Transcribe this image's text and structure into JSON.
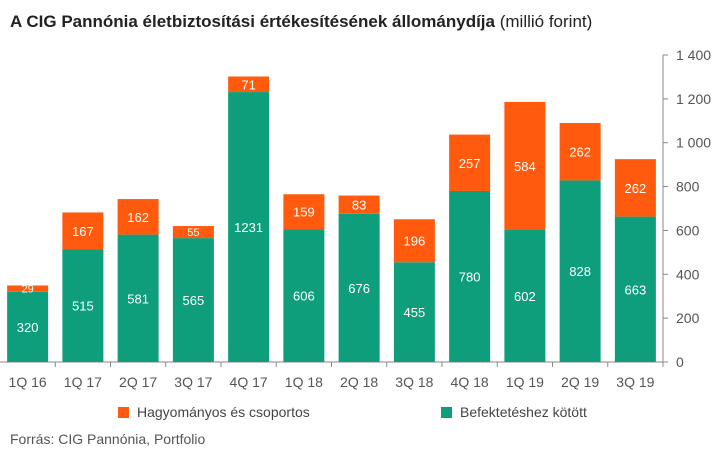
{
  "title": "A CIG Pannónia életbiztosítási értékesítésének állománydíja",
  "subtitle": "(millió forint)",
  "source": "Forrás:  CIG Pannónia, Portfolio",
  "colors": {
    "green": "#0e9e7c",
    "orange": "#ff5a0d",
    "grid": "#d9d9d9",
    "axis": "#555555"
  },
  "chart_data": {
    "type": "bar",
    "stacked": true,
    "categories": [
      "1Q 16",
      "1Q 17",
      "2Q 17",
      "3Q 17",
      "4Q 17",
      "1Q 18",
      "2Q 18",
      "3Q 18",
      "4Q 18",
      "1Q 19",
      "2Q 19",
      "3Q 19"
    ],
    "series": [
      {
        "name": "Befektetéshez kötött",
        "color": "#0e9e7c",
        "values": [
          320,
          515,
          581,
          565,
          1231,
          606,
          676,
          455,
          780,
          602,
          828,
          663
        ]
      },
      {
        "name": "Hagyományos és csoportos",
        "color": "#ff5a0d",
        "values": [
          29,
          167,
          162,
          55,
          71,
          159,
          83,
          196,
          257,
          584,
          262,
          262
        ]
      }
    ],
    "ylim": [
      0,
      1400
    ],
    "yticks": [
      0,
      200,
      400,
      600,
      800,
      "1 000",
      "1 200",
      "1 400"
    ],
    "ytick_values": [
      0,
      200,
      400,
      600,
      800,
      1000,
      1200,
      1400
    ],
    "y_axis_side": "right",
    "grid": false,
    "legend_placement": "bottom"
  }
}
